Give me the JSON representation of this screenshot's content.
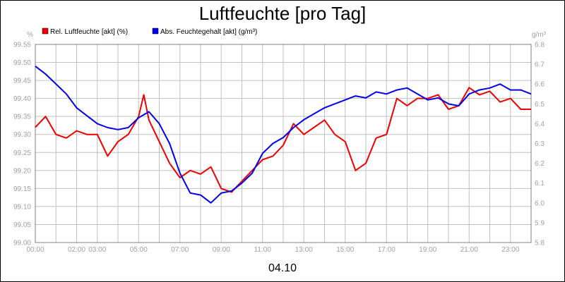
{
  "chart_data": {
    "type": "line",
    "title": "Luftfeuchte [pro Tag]",
    "date_label": "04.10",
    "left_unit": "%",
    "right_unit": "g/m³",
    "x_ticks": [
      "00:00",
      "02:00",
      "03:00",
      "05:00",
      "07:00",
      "09:00",
      "11:00",
      "13:00",
      "15:00",
      "17:00",
      "19:00",
      "21:00",
      "23:00"
    ],
    "y_left_ticks": [
      "99.00",
      "99.05",
      "99.10",
      "99.15",
      "99.20",
      "99.25",
      "99.30",
      "99.35",
      "99.40",
      "99.45",
      "99.50",
      "99.55"
    ],
    "y_right_ticks": [
      "5.8",
      "5.9",
      "6.0",
      "6.1",
      "6.2",
      "6.3",
      "6.4",
      "6.5",
      "6.6",
      "6.7",
      "6.8"
    ],
    "ylim_left": [
      99.0,
      99.55
    ],
    "ylim_right": [
      5.8,
      6.8
    ],
    "xlim_hours": [
      0,
      24
    ],
    "grid": true,
    "legend_position": "top-left",
    "colors": {
      "rel": "#ee0000",
      "abs": "#0000ee",
      "grid": "#c0c0c0",
      "axis": "#808080"
    },
    "series": [
      {
        "name": "Rel. Luftfeuchte [akt] (%)",
        "axis": "left",
        "color": "#ee0000",
        "x": [
          "00:00",
          "00:30",
          "01:00",
          "01:30",
          "02:00",
          "02:30",
          "03:00",
          "03:30",
          "04:00",
          "04:30",
          "05:00",
          "05:15",
          "05:30",
          "06:00",
          "06:30",
          "07:00",
          "07:30",
          "08:00",
          "08:30",
          "09:00",
          "09:30",
          "10:00",
          "10:30",
          "11:00",
          "11:30",
          "12:00",
          "12:30",
          "13:00",
          "13:30",
          "14:00",
          "14:30",
          "15:00",
          "15:30",
          "16:00",
          "16:30",
          "17:00",
          "17:30",
          "18:00",
          "18:30",
          "19:00",
          "19:30",
          "20:00",
          "20:30",
          "21:00",
          "21:30",
          "22:00",
          "22:30",
          "23:00",
          "23:30",
          "24:00"
        ],
        "y": [
          99.32,
          99.35,
          99.3,
          99.29,
          99.31,
          99.3,
          99.3,
          99.24,
          99.28,
          99.3,
          99.35,
          99.41,
          99.34,
          99.28,
          99.22,
          99.18,
          99.2,
          99.19,
          99.21,
          99.15,
          99.14,
          99.17,
          99.2,
          99.23,
          99.24,
          99.27,
          99.33,
          99.3,
          99.32,
          99.34,
          99.3,
          99.28,
          99.2,
          99.22,
          99.29,
          99.3,
          99.4,
          99.38,
          99.4,
          99.4,
          99.41,
          99.37,
          99.38,
          99.43,
          99.41,
          99.42,
          99.39,
          99.4,
          99.37,
          99.37
        ]
      },
      {
        "name": "Abs. Feuchtegehalt [akt] (g/m³)",
        "axis": "right",
        "color": "#0000ee",
        "x": [
          "00:00",
          "00:30",
          "01:00",
          "01:30",
          "02:00",
          "02:30",
          "03:00",
          "03:30",
          "04:00",
          "04:30",
          "05:00",
          "05:30",
          "06:00",
          "06:30",
          "07:00",
          "07:30",
          "08:00",
          "08:30",
          "09:00",
          "09:30",
          "10:00",
          "10:30",
          "11:00",
          "11:30",
          "12:00",
          "12:30",
          "13:00",
          "13:30",
          "14:00",
          "14:30",
          "15:00",
          "15:30",
          "16:00",
          "16:30",
          "17:00",
          "17:30",
          "18:00",
          "18:30",
          "19:00",
          "19:30",
          "20:00",
          "20:30",
          "21:00",
          "21:30",
          "22:00",
          "22:30",
          "23:00",
          "23:30",
          "24:00"
        ],
        "y": [
          6.69,
          6.65,
          6.6,
          6.55,
          6.48,
          6.44,
          6.4,
          6.38,
          6.37,
          6.38,
          6.43,
          6.46,
          6.4,
          6.3,
          6.15,
          6.05,
          6.04,
          6.0,
          6.05,
          6.06,
          6.1,
          6.15,
          6.25,
          6.3,
          6.33,
          6.38,
          6.42,
          6.45,
          6.48,
          6.5,
          6.52,
          6.54,
          6.53,
          6.56,
          6.55,
          6.57,
          6.58,
          6.55,
          6.52,
          6.53,
          6.5,
          6.49,
          6.55,
          6.57,
          6.58,
          6.6,
          6.57,
          6.57,
          6.55
        ]
      }
    ]
  }
}
